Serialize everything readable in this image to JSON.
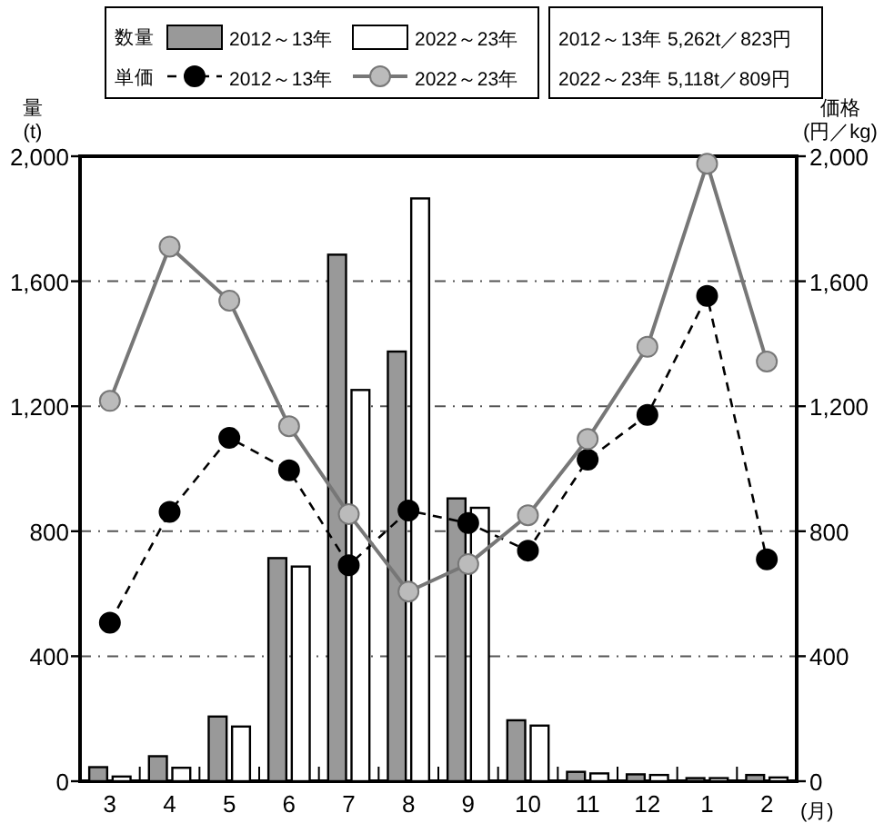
{
  "chart_data": {
    "type": "bar",
    "categories": [
      "3",
      "4",
      "5",
      "6",
      "7",
      "8",
      "9",
      "10",
      "11",
      "12",
      "1",
      "2"
    ],
    "xlabel": "(月)",
    "ylabel": "量 (t)",
    "y2label": "価格 (円／kg)",
    "ylim": [
      0,
      2000
    ],
    "yticks": [
      0,
      400,
      800,
      {
        "value": 1200,
        "label": "1,200"
      },
      {
        "value": 1600,
        "label": "1,600"
      },
      {
        "value": 2000,
        "label": "2,000"
      }
    ],
    "y2lim": [
      0,
      2000
    ],
    "y2ticks": [
      0,
      400,
      800,
      {
        "value": 1200,
        "label": "1,200"
      },
      {
        "value": 1600,
        "label": "1,600"
      },
      {
        "value": 2000,
        "label": "2,000"
      }
    ],
    "grid": "y",
    "legend": "top",
    "series": [
      {
        "name": "2012～13年",
        "type": "bar",
        "color": "#999999",
        "values": [
          45,
          80,
          207,
          714,
          1685,
          1375,
          905,
          195,
          30,
          22,
          10,
          20
        ]
      },
      {
        "name": "2022～23年",
        "type": "bar",
        "color": "#ffffff",
        "values": [
          15,
          43,
          175,
          687,
          1252,
          1865,
          875,
          178,
          25,
          20,
          10,
          12
        ]
      },
      {
        "name": "2012～13年",
        "type": "line",
        "axis": "y2",
        "color": "#000000",
        "line_style": "dashed",
        "marker": "circle",
        "values": [
          507,
          862,
          1099,
          995,
          691,
          866,
          826,
          738,
          1029,
          1172,
          1553,
          710
        ]
      },
      {
        "name": "2022～23年",
        "type": "line",
        "axis": "y2",
        "color": "#777777",
        "line_style": "solid",
        "marker": "circle",
        "values": [
          1217,
          1711,
          1538,
          1136,
          855,
          607,
          695,
          851,
          1095,
          1390,
          1976,
          1343
        ]
      }
    ],
    "annotations": [
      "数量",
      "単価",
      "2012～13年 5,262t／823円",
      "2022～23年 5,118t／809円"
    ]
  }
}
